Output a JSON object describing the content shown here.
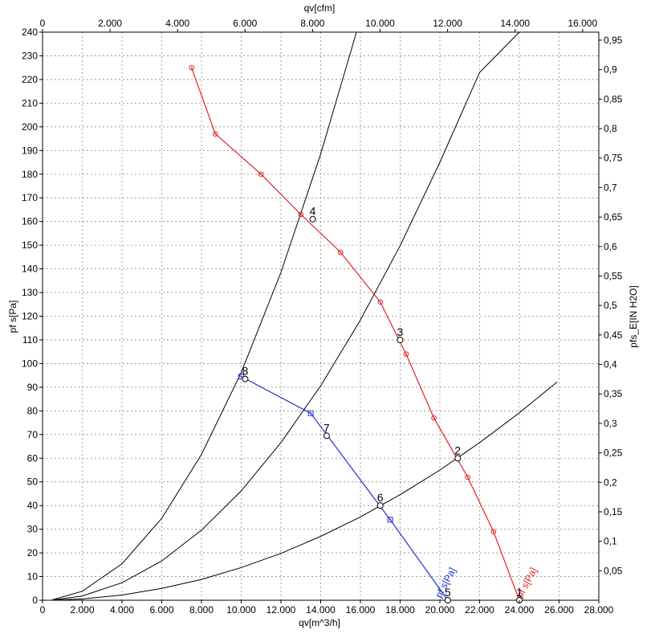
{
  "chart_data": {
    "type": "line",
    "axes": {
      "bottom": {
        "label": "qv[m^3/h]",
        "min": 0,
        "max": 28000,
        "ticks": [
          "0",
          "2.000",
          "4.000",
          "6.000",
          "8.000",
          "10.000",
          "12.000",
          "14.000",
          "16.000",
          "18.000",
          "20.000",
          "22.000",
          "24.000",
          "26.000",
          "28.000"
        ]
      },
      "top": {
        "label": "qv[cfm]",
        "min": 0,
        "max": 16480,
        "ticks": [
          "0",
          "2.000",
          "4.000",
          "6.000",
          "8.000",
          "10.000",
          "12.000",
          "14.000",
          "16.000"
        ]
      },
      "left": {
        "label": "pf s[Pa]",
        "min": 0,
        "max": 240,
        "ticks": [
          "0",
          "10",
          "20",
          "30",
          "40",
          "50",
          "60",
          "70",
          "80",
          "90",
          "100",
          "110",
          "120",
          "130",
          "140",
          "150",
          "160",
          "170",
          "180",
          "190",
          "200",
          "210",
          "220",
          "230",
          "240"
        ]
      },
      "right": {
        "label": "pfs_E[IN H2O]",
        "min": 0,
        "max": 0.9636,
        "ticks": [
          "0,05",
          "0,1",
          "0,15",
          "0,2",
          "0,25",
          "0,3",
          "0,35",
          "0,4",
          "0,45",
          "0,5",
          "0,55",
          "0,6",
          "0,65",
          "0,7",
          "0,75",
          "0,8",
          "0,85",
          "0,9",
          "0,95"
        ]
      }
    },
    "grid": true,
    "series": [
      {
        "name": "pf s[Pa]",
        "color": "#e32222",
        "points": [
          [
            7500,
            225
          ],
          [
            8700,
            197
          ],
          [
            11000,
            180
          ],
          [
            13000,
            163
          ],
          [
            15000,
            147
          ],
          [
            17000,
            126
          ],
          [
            18300,
            104
          ],
          [
            19700,
            77
          ],
          [
            21400,
            52
          ],
          [
            22700,
            29
          ],
          [
            24000,
            0
          ]
        ],
        "markers": [
          [
            7500,
            225
          ],
          [
            8700,
            197
          ],
          [
            11000,
            180
          ],
          [
            13000,
            163
          ],
          [
            15000,
            147
          ],
          [
            17000,
            126
          ],
          [
            18300,
            104
          ],
          [
            19700,
            77
          ],
          [
            21400,
            52
          ],
          [
            22700,
            29
          ]
        ]
      },
      {
        "name": "pf s[Pa]",
        "color": "#1d2fd1",
        "points": [
          [
            10000,
            94.5
          ],
          [
            13500,
            79
          ],
          [
            17500,
            34
          ],
          [
            20400,
            0
          ]
        ],
        "markers": [
          [
            10000,
            94.5
          ],
          [
            13500,
            79
          ],
          [
            17500,
            34
          ]
        ]
      }
    ],
    "system_curves": [
      {
        "x": [
          500,
          2000,
          4000,
          6000,
          8000,
          10000,
          12000,
          14000,
          16000,
          18000,
          20000,
          22000,
          24000,
          25900
        ],
        "y": [
          0.03,
          0.55,
          2.2,
          5,
          8.8,
          13.8,
          19.8,
          27,
          35.2,
          44.6,
          55,
          66.6,
          79.2,
          92.2
        ]
      },
      {
        "x": [
          500,
          2000,
          4000,
          6000,
          8000,
          10000,
          12000,
          14000,
          16000,
          18000,
          20000,
          22000,
          24000,
          25800
        ],
        "y": [
          0.1,
          1.8,
          7.4,
          16.6,
          29.6,
          46.2,
          66.6,
          90.6,
          118.4,
          149.8,
          185,
          223,
          265,
          305
        ]
      },
      {
        "x": [
          500,
          2000,
          4000,
          6000,
          8000,
          10000,
          12000,
          14000,
          15800
        ],
        "y": [
          0.2,
          3.8,
          15.4,
          34.6,
          61.6,
          96.2,
          138.5,
          188.5,
          240
        ]
      }
    ],
    "operating_points": [
      {
        "label": "1",
        "x": 24000,
        "y": 0
      },
      {
        "label": "2",
        "x": 20900,
        "y": 60
      },
      {
        "label": "3",
        "x": 18000,
        "y": 110
      },
      {
        "label": "4",
        "x": 13600,
        "y": 161
      },
      {
        "label": "5",
        "x": 20400,
        "y": 0
      },
      {
        "label": "6",
        "x": 17000,
        "y": 40
      },
      {
        "label": "7",
        "x": 14300,
        "y": 69.5
      },
      {
        "label": "8",
        "x": 10200,
        "y": 93.5
      }
    ]
  }
}
